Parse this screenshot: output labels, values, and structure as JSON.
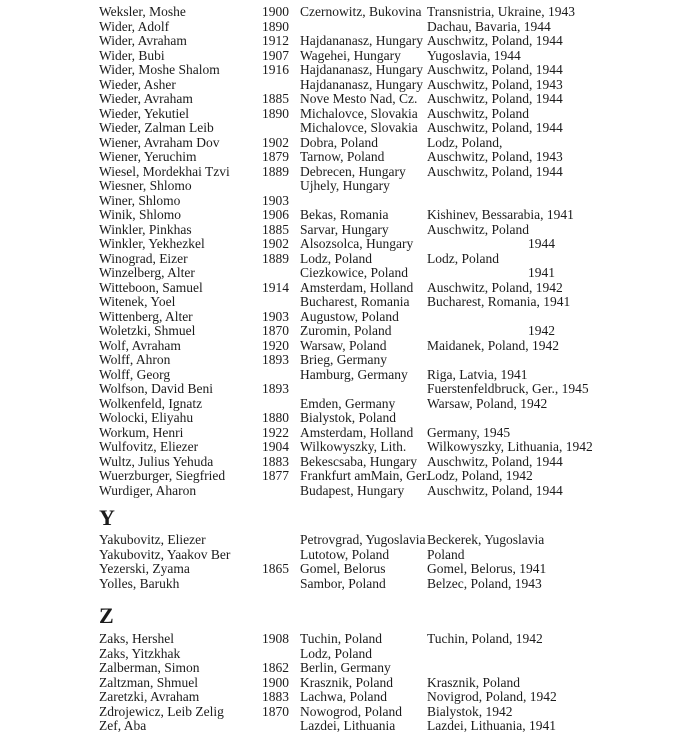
{
  "colors": {
    "text": "#1b1b1b",
    "background": "#ffffff"
  },
  "page": {
    "sections": [
      {
        "heading": "",
        "entries": [
          {
            "name": "Weksler, Moshe",
            "year": "1900",
            "origin": "Czernowitz, Bukovina",
            "death": "Transnistria, Ukraine, 1943",
            "death_tab": false
          },
          {
            "name": "Wider, Adolf",
            "year": "1890",
            "origin": "",
            "death": "Dachau, Bavaria, 1944",
            "death_tab": false
          },
          {
            "name": "Wider, Avraham",
            "year": "1912",
            "origin": "Hajdananasz, Hungary",
            "death": "Auschwitz, Poland, 1944",
            "death_tab": false
          },
          {
            "name": "Wider, Bubi",
            "year": "1907",
            "origin": "Wagehei, Hungary",
            "death": "Yugoslavia, 1944",
            "death_tab": false
          },
          {
            "name": "Wider, Moshe Shalom",
            "year": "1916",
            "origin": "Hajdananasz, Hungary",
            "death": "Auschwitz, Poland, 1944",
            "death_tab": false
          },
          {
            "name": "Wieder, Asher",
            "year": "",
            "origin": "Hajdananasz, Hungary",
            "death": "Auschwitz, Poland, 1943",
            "death_tab": false
          },
          {
            "name": "Wieder, Avraham",
            "year": "1885",
            "origin": "Nove Mesto Nad, Cz.",
            "death": "Auschwitz, Poland, 1944",
            "death_tab": false
          },
          {
            "name": "Wieder, Yekutiel",
            "year": "1890",
            "origin": "Michalovce, Slovakia",
            "death": "Auschwitz, Poland",
            "death_tab": false
          },
          {
            "name": "Wieder, Zalman Leib",
            "year": "",
            "origin": "Michalovce, Slovakia",
            "death": "Auschwitz, Poland, 1944",
            "death_tab": false
          },
          {
            "name": "Wiener, Avraham Dov",
            "year": "1902",
            "origin": "Dobra, Poland",
            "death": "Lodz, Poland,",
            "death_tab": false
          },
          {
            "name": "Wiener, Yeruchim",
            "year": "1879",
            "origin": "Tarnow, Poland",
            "death": "Auschwitz, Poland, 1943",
            "death_tab": false
          },
          {
            "name": "Wiesel, Mordekhai Tzvi",
            "year": "1889",
            "origin": "Debrecen, Hungary",
            "death": "Auschwitz, Poland, 1944",
            "death_tab": false
          },
          {
            "name": "Wiesner, Shlomo",
            "year": "",
            "origin": "Ujhely, Hungary",
            "death": "",
            "death_tab": false
          },
          {
            "name": "Winer, Shlomo",
            "year": "1903",
            "origin": "",
            "death": "",
            "death_tab": false
          },
          {
            "name": "Winik, Shlomo",
            "year": "1906",
            "origin": "Bekas, Romania",
            "death": "Kishinev, Bessarabia, 1941",
            "death_tab": false
          },
          {
            "name": "Winkler, Pinkhas",
            "year": "1885",
            "origin": "Sarvar, Hungary",
            "death": "Auschwitz, Poland",
            "death_tab": false
          },
          {
            "name": "Winkler, Yekhezkel",
            "year": "1902",
            "origin": "Alsozsolca, Hungary",
            "death": "1944",
            "death_tab": true
          },
          {
            "name": "Winograd, Eizer",
            "year": "1889",
            "origin": "Lodz, Poland",
            "death": "Lodz, Poland",
            "death_tab": false
          },
          {
            "name": "Winzelberg, Alter",
            "year": "",
            "origin": "Ciezkowice, Poland",
            "death": "1941",
            "death_tab": true
          },
          {
            "name": "Witteboon, Samuel",
            "year": "1914",
            "origin": "Amsterdam, Holland",
            "death": "Auschwitz, Poland, 1942",
            "death_tab": false
          },
          {
            "name": "Witenek, Yoel",
            "year": "",
            "origin": "Bucharest, Romania",
            "death": "Bucharest, Romania, 1941",
            "death_tab": false
          },
          {
            "name": "Wittenberg, Alter",
            "year": "1903",
            "origin": "Augustow, Poland",
            "death": "",
            "death_tab": false
          },
          {
            "name": "Woletzki, Shmuel",
            "year": "1870",
            "origin": "Zuromin, Poland",
            "death": "1942",
            "death_tab": true
          },
          {
            "name": "Wolf, Avraham",
            "year": "1920",
            "origin": "Warsaw, Poland",
            "death": "Maidanek, Poland, 1942",
            "death_tab": false
          },
          {
            "name": "Wolff, Ahron",
            "year": "1893",
            "origin": "Brieg, Germany",
            "death": "",
            "death_tab": false
          },
          {
            "name": "Wolff, Georg",
            "year": "",
            "origin": "Hamburg, Germany",
            "death": "Riga, Latvia, 1941",
            "death_tab": false
          },
          {
            "name": "Wolfson, David Beni",
            "year": "1893",
            "origin": "",
            "death": "Fuerstenfeldbruck, Ger., 1945",
            "death_tab": false
          },
          {
            "name": "Wolkenfeld, Ignatz",
            "year": "",
            "origin": "Emden, Germany",
            "death": "Warsaw, Poland, 1942",
            "death_tab": false
          },
          {
            "name": "Wolocki, Eliyahu",
            "year": "1880",
            "origin": "Bialystok, Poland",
            "death": "",
            "death_tab": false
          },
          {
            "name": "Workum, Henri",
            "year": "1922",
            "origin": "Amsterdam, Holland",
            "death": "Germany, 1945",
            "death_tab": false
          },
          {
            "name": "Wulfovitz, Eliezer",
            "year": "1904",
            "origin": "Wilkowyszky, Lith.",
            "death": "Wilkowyszky, Lithuania, 1942",
            "death_tab": false
          },
          {
            "name": "Wultz, Julius Yehuda",
            "year": "1883",
            "origin": "Bekescsaba, Hungary",
            "death": "Auschwitz, Poland, 1944",
            "death_tab": false
          },
          {
            "name": "Wuerzburger, Siegfried",
            "year": "1877",
            "origin": "Frankfurt amMain, Ger.",
            "death": "Lodz, Poland, 1942",
            "death_tab": false
          },
          {
            "name": "Wurdiger, Aharon",
            "year": "",
            "origin": "Budapest, Hungary",
            "death": "Auschwitz, Poland, 1944",
            "death_tab": false
          }
        ]
      },
      {
        "heading": "Y",
        "entries": [
          {
            "name": "Yakubovitz, Eliezer",
            "year": "",
            "origin": "Petrovgrad, Yugoslavia",
            "death": "Beckerek, Yugoslavia",
            "death_tab": false
          },
          {
            "name": "Yakubovitz, Yaakov Ber",
            "year": "",
            "origin": "Lutotow, Poland",
            "death": "Poland",
            "death_tab": false
          },
          {
            "name": "Yezerski, Zyama",
            "year": "1865",
            "origin": "Gomel, Belorus",
            "death": "Gomel, Belorus, 1941",
            "death_tab": false
          },
          {
            "name": "Yolles, Barukh",
            "year": "",
            "origin": "Sambor, Poland",
            "death": "Belzec, Poland, 1943",
            "death_tab": false
          }
        ]
      },
      {
        "heading": "Z",
        "entries": [
          {
            "name": "Zaks, Hershel",
            "year": "1908",
            "origin": "Tuchin, Poland",
            "death": "Tuchin, Poland, 1942",
            "death_tab": false
          },
          {
            "name": "Zaks, Yitzkhak",
            "year": "",
            "origin": "Lodz, Poland",
            "death": "",
            "death_tab": false
          },
          {
            "name": "Zalberman, Simon",
            "year": "1862",
            "origin": "Berlin, Germany",
            "death": "",
            "death_tab": false
          },
          {
            "name": "Zaltzman, Shmuel",
            "year": "1900",
            "origin": "Krasznik, Poland",
            "death": "Krasznik, Poland",
            "death_tab": false
          },
          {
            "name": "Zaretzki, Avraham",
            "year": "1883",
            "origin": "Lachwa, Poland",
            "death": "Novigrod, Poland, 1942",
            "death_tab": false
          },
          {
            "name": "Zdrojewicz, Leib Zelig",
            "year": "1870",
            "origin": "Nowogrod, Poland",
            "death": "Bialystok, 1942",
            "death_tab": false
          },
          {
            "name": "Zef, Aba",
            "year": "",
            "origin": "Lazdei, Lithuania",
            "death": "Lazdei, Lithuania, 1941",
            "death_tab": false
          }
        ]
      }
    ]
  }
}
